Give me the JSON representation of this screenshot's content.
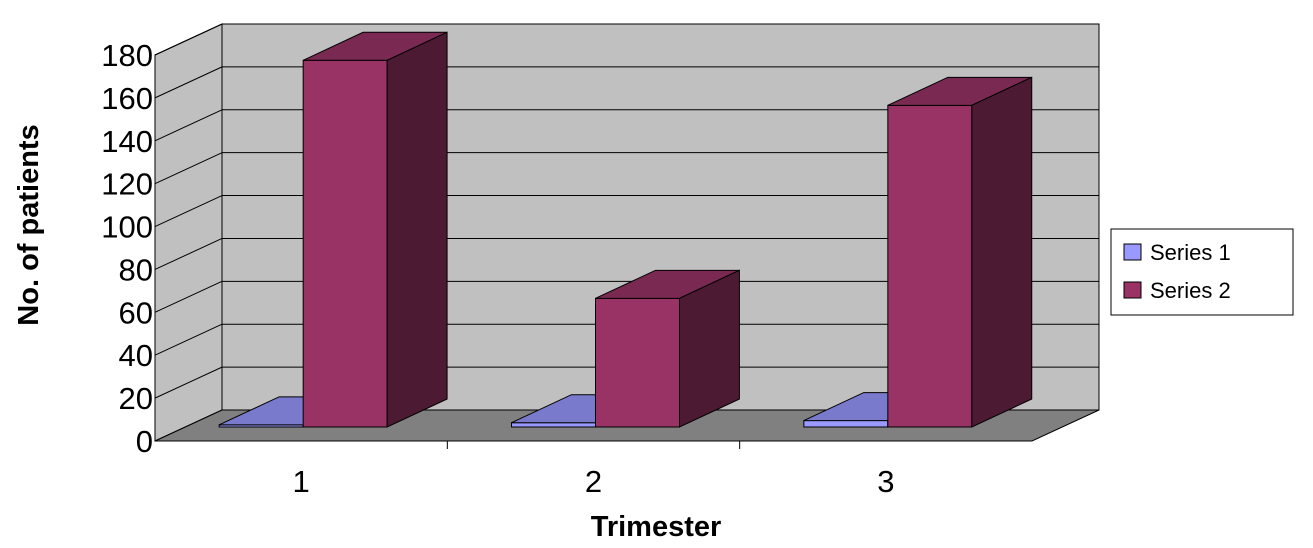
{
  "chart_data": {
    "type": "bar",
    "style": "3d-clustered-column",
    "categories": [
      "1",
      "2",
      "3"
    ],
    "series": [
      {
        "name": "Series 1",
        "values": [
          1,
          2,
          3
        ],
        "color": "#9999ff"
      },
      {
        "name": "Series 2",
        "values": [
          171,
          60,
          150
        ],
        "color": "#993366"
      }
    ],
    "xlabel": "Trimester",
    "ylabel": "No. of patients",
    "ylim": [
      0,
      180
    ],
    "yticks": [
      "0",
      "20",
      "40",
      "60",
      "80",
      "100",
      "120",
      "140",
      "160",
      "180"
    ],
    "grid": true,
    "legend_position": "right",
    "colors": {
      "wall": "#c0c0c0",
      "floor": "#808080",
      "gridline": "#000000",
      "series2_side": "#4d1a33",
      "series2_top": "#7a2952",
      "series1_side": "#4d4d80",
      "series1_top": "#7a7acc"
    }
  }
}
